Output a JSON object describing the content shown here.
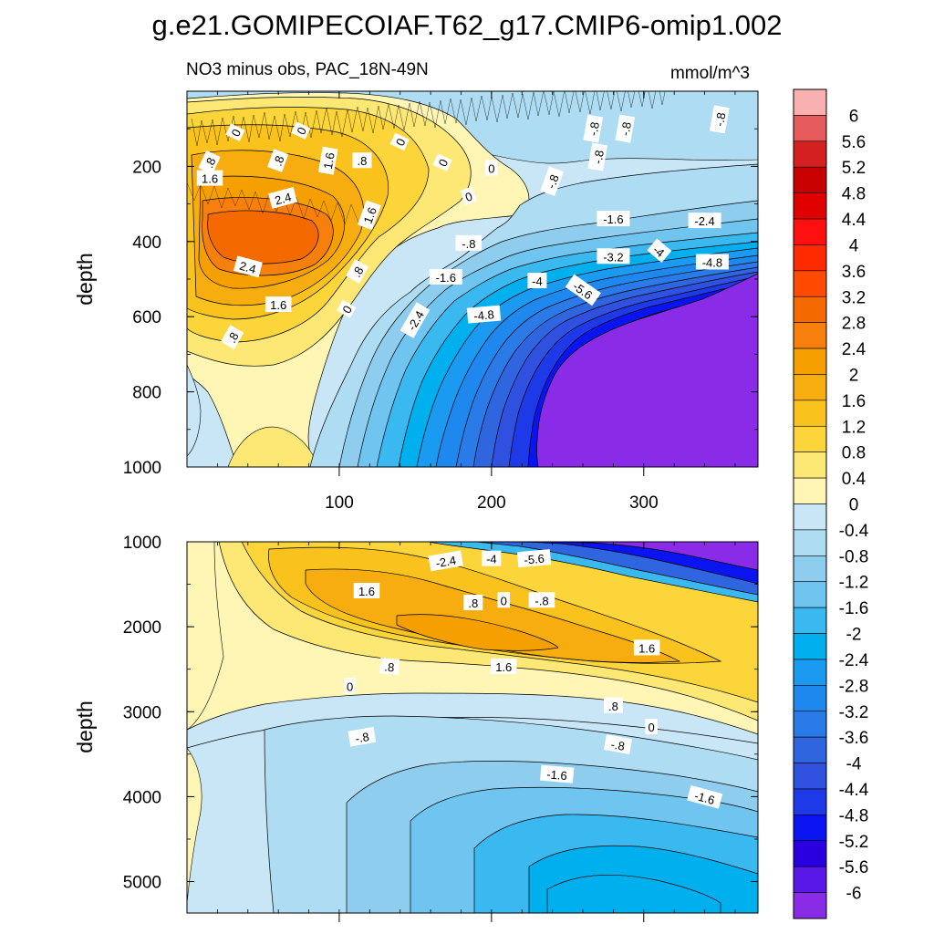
{
  "title": "g.e21.GOMIPECOIAF.T62_g17.CMIP6-omip1.002",
  "chart_data": {
    "type": "contour",
    "variable_label": "NO3 minus obs, PAC_18N-49N",
    "units": "mmol/m^3",
    "panels": [
      {
        "name": "upper",
        "ylabel": "depth",
        "ylim": [
          0,
          1000
        ],
        "y_reversed": true,
        "xlim": [
          0,
          375
        ],
        "yticks": [
          "200",
          "400",
          "600",
          "800",
          "1000"
        ],
        "xticks": [
          "100",
          "200",
          "300"
        ],
        "contour_labels": [
          {
            "text": "0",
            "x": 32,
            "y": 110,
            "rot": -65
          },
          {
            "text": "0",
            "x": 75,
            "y": 105,
            "rot": -65
          },
          {
            "text": "0",
            "x": 140,
            "y": 135,
            "rot": -65
          },
          {
            "text": "0",
            "x": 168,
            "y": 190,
            "rot": -65
          },
          {
            "text": "0",
            "x": 200,
            "y": 205,
            "rot": 0
          },
          {
            "text": "0",
            "x": 185,
            "y": 280,
            "rot": -20
          },
          {
            "text": "0",
            "x": 105,
            "y": 580,
            "rot": -60
          },
          {
            "text": ".8",
            "x": 15,
            "y": 190,
            "rot": -65
          },
          {
            "text": ".8",
            "x": 60,
            "y": 185,
            "rot": -70
          },
          {
            "text": ".8",
            "x": 115,
            "y": 185,
            "rot": 0
          },
          {
            "text": ".8",
            "x": 112,
            "y": 480,
            "rot": -60
          },
          {
            "text": ".8",
            "x": 30,
            "y": 655,
            "rot": -60
          },
          {
            "text": "1.6",
            "x": 93,
            "y": 185,
            "rot": -80
          },
          {
            "text": "1.6",
            "x": 15,
            "y": 232,
            "rot": 0
          },
          {
            "text": "1.6",
            "x": 120,
            "y": 330,
            "rot": -70
          },
          {
            "text": "1.6",
            "x": 60,
            "y": 568,
            "rot": 0
          },
          {
            "text": "2.4",
            "x": 63,
            "y": 285,
            "rot": -15
          },
          {
            "text": "2.4",
            "x": 40,
            "y": 468,
            "rot": 15
          },
          {
            "text": "-.8",
            "x": 267,
            "y": 100,
            "rot": -80
          },
          {
            "text": "-.8",
            "x": 288,
            "y": 100,
            "rot": -80
          },
          {
            "text": "-.8",
            "x": 350,
            "y": 75,
            "rot": -80
          },
          {
            "text": "-.8",
            "x": 270,
            "y": 175,
            "rot": -80
          },
          {
            "text": "-.8",
            "x": 240,
            "y": 240,
            "rot": -70
          },
          {
            "text": "-.8",
            "x": 185,
            "y": 405,
            "rot": 0
          },
          {
            "text": "-1.6",
            "x": 280,
            "y": 340,
            "rot": 0
          },
          {
            "text": "-1.6",
            "x": 170,
            "y": 495,
            "rot": 0
          },
          {
            "text": "-2.4",
            "x": 340,
            "y": 345,
            "rot": 0
          },
          {
            "text": "-2.4",
            "x": 150,
            "y": 610,
            "rot": -60
          },
          {
            "text": "-3.2",
            "x": 280,
            "y": 440,
            "rot": 0
          },
          {
            "text": "-4",
            "x": 310,
            "y": 425,
            "rot": 40
          },
          {
            "text": "-4",
            "x": 230,
            "y": 505,
            "rot": 0
          },
          {
            "text": "-4.8",
            "x": 345,
            "y": 455,
            "rot": 0
          },
          {
            "text": "-4.8",
            "x": 195,
            "y": 595,
            "rot": -5
          },
          {
            "text": "-5.6",
            "x": 260,
            "y": 530,
            "rot": 35
          }
        ]
      },
      {
        "name": "lower",
        "ylabel": "depth",
        "ylim": [
          1000,
          5370
        ],
        "y_reversed": true,
        "xlim": [
          0,
          375
        ],
        "yticks": [
          "1000",
          "2000",
          "3000",
          "4000",
          "5000"
        ],
        "xticks": [],
        "contour_labels": [
          {
            "text": "-2.4",
            "x": 170,
            "y": 1230,
            "rot": -10
          },
          {
            "text": "-4",
            "x": 200,
            "y": 1200,
            "rot": 0
          },
          {
            "text": "-5.6",
            "x": 228,
            "y": 1200,
            "rot": -5
          },
          {
            "text": "1.6",
            "x": 118,
            "y": 1580,
            "rot": 0
          },
          {
            "text": ".8",
            "x": 188,
            "y": 1720,
            "rot": 0
          },
          {
            "text": "0",
            "x": 208,
            "y": 1690,
            "rot": 0
          },
          {
            "text": "-.8",
            "x": 233,
            "y": 1690,
            "rot": 0
          },
          {
            "text": "1.6",
            "x": 302,
            "y": 2250,
            "rot": 0
          },
          {
            "text": ".8",
            "x": 133,
            "y": 2470,
            "rot": 5
          },
          {
            "text": "1.6",
            "x": 208,
            "y": 2470,
            "rot": 0
          },
          {
            "text": "0",
            "x": 107,
            "y": 2700,
            "rot": 0
          },
          {
            "text": ".8",
            "x": 280,
            "y": 2930,
            "rot": 0
          },
          {
            "text": "0",
            "x": 305,
            "y": 3180,
            "rot": 0
          },
          {
            "text": "-.8",
            "x": 115,
            "y": 3300,
            "rot": -10
          },
          {
            "text": "-.8",
            "x": 283,
            "y": 3390,
            "rot": 10
          },
          {
            "text": "-1.6",
            "x": 243,
            "y": 3740,
            "rot": 5
          },
          {
            "text": "-1.6",
            "x": 340,
            "y": 4010,
            "rot": 15
          }
        ]
      }
    ],
    "colorbar": {
      "levels": [
        "6",
        "5.6",
        "5.2",
        "4.8",
        "4.4",
        "4",
        "3.6",
        "3.2",
        "2.8",
        "2.4",
        "2",
        "1.6",
        "1.2",
        "0.8",
        "0.4",
        "0",
        "-0.4",
        "-0.8",
        "-1.2",
        "-1.6",
        "-2",
        "-2.4",
        "-2.8",
        "-3.2",
        "-3.6",
        "-4",
        "-4.4",
        "-4.8",
        "-5.2",
        "-5.6",
        "-6"
      ],
      "colors": [
        "#f9b0b0",
        "#e55a5a",
        "#d42020",
        "#c80000",
        "#e00000",
        "#ff1010",
        "#ff2a00",
        "#ff4a00",
        "#f56a00",
        "#f77f0c",
        "#f5a000",
        "#f7ad10",
        "#fac21c",
        "#fbd53a",
        "#fde876",
        "#fff6b5",
        "#c8e6f5",
        "#aedcf2",
        "#8fcdee",
        "#6fc4f0",
        "#3ab8f0",
        "#00b0ee",
        "#1a9af0",
        "#1e88ee",
        "#2a7ae8",
        "#2f66e0",
        "#3050e0",
        "#1e3ae8",
        "#0a14f0",
        "#2a00e0",
        "#5a18e8",
        "#8a2be8"
      ]
    }
  }
}
